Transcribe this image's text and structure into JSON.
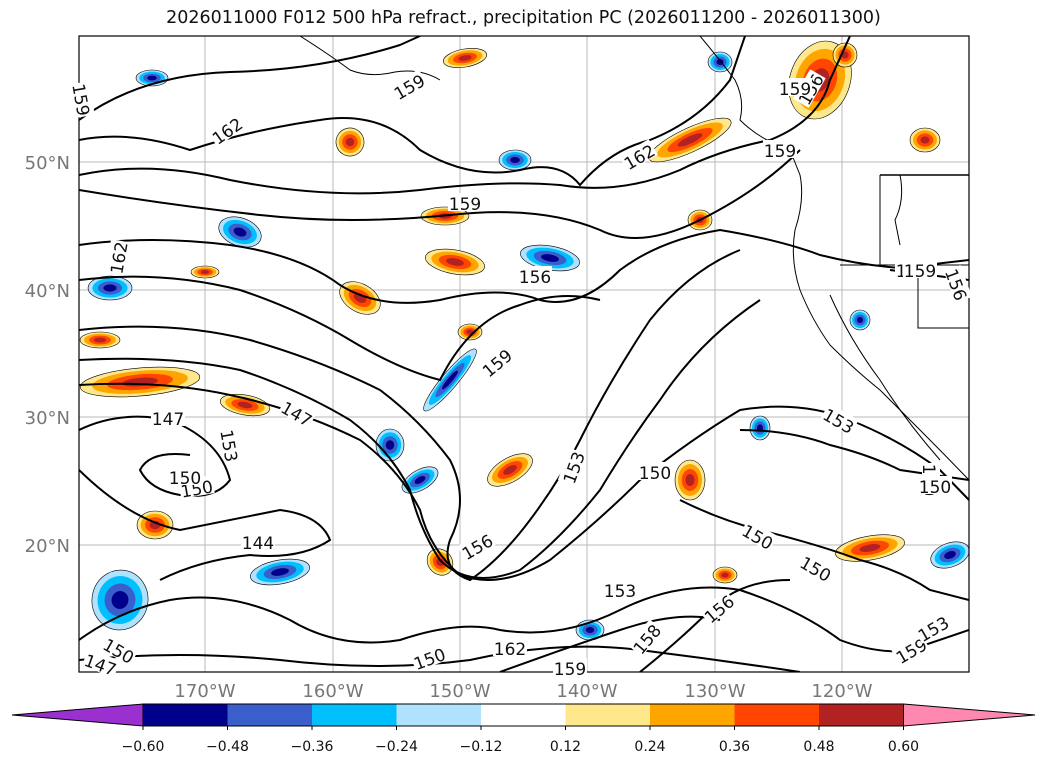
{
  "title": "2026011000 F012 500 hPa refract., precipitation PC (2026011200 - 2026011300)",
  "map": {
    "lat_labels": [
      "50°N",
      "40°N",
      "30°N",
      "20°N"
    ],
    "lon_labels": [
      "170°W",
      "160°W",
      "150°W",
      "140°W",
      "130°W",
      "120°W"
    ],
    "contour_labels": [
      "159",
      "162",
      "159",
      "159",
      "162",
      "159",
      "162",
      "156",
      "159",
      "156",
      "156",
      "150",
      "159",
      "153",
      "147",
      "147",
      "153",
      "150",
      "150",
      "153",
      "150",
      "144",
      "150",
      "153",
      "156",
      "158",
      "156",
      "162",
      "159",
      "159",
      "153",
      "150",
      "150",
      "147",
      "150",
      "159",
      "159",
      "150"
    ],
    "contour_color": "#000000"
  },
  "colorbar": {
    "tick_labels": [
      "−0.60",
      "−0.48",
      "−0.36",
      "−0.24",
      "−0.12",
      "0.12",
      "0.24",
      "0.36",
      "0.48",
      "0.60"
    ],
    "colors": [
      "#9b30d0",
      "#00008b",
      "#3a5fcd",
      "#00bfff",
      "#b0e2ff",
      "#ffffff",
      "#ffe88c",
      "#ffa500",
      "#ff4500",
      "#b22222",
      "#ff88b0"
    ]
  }
}
